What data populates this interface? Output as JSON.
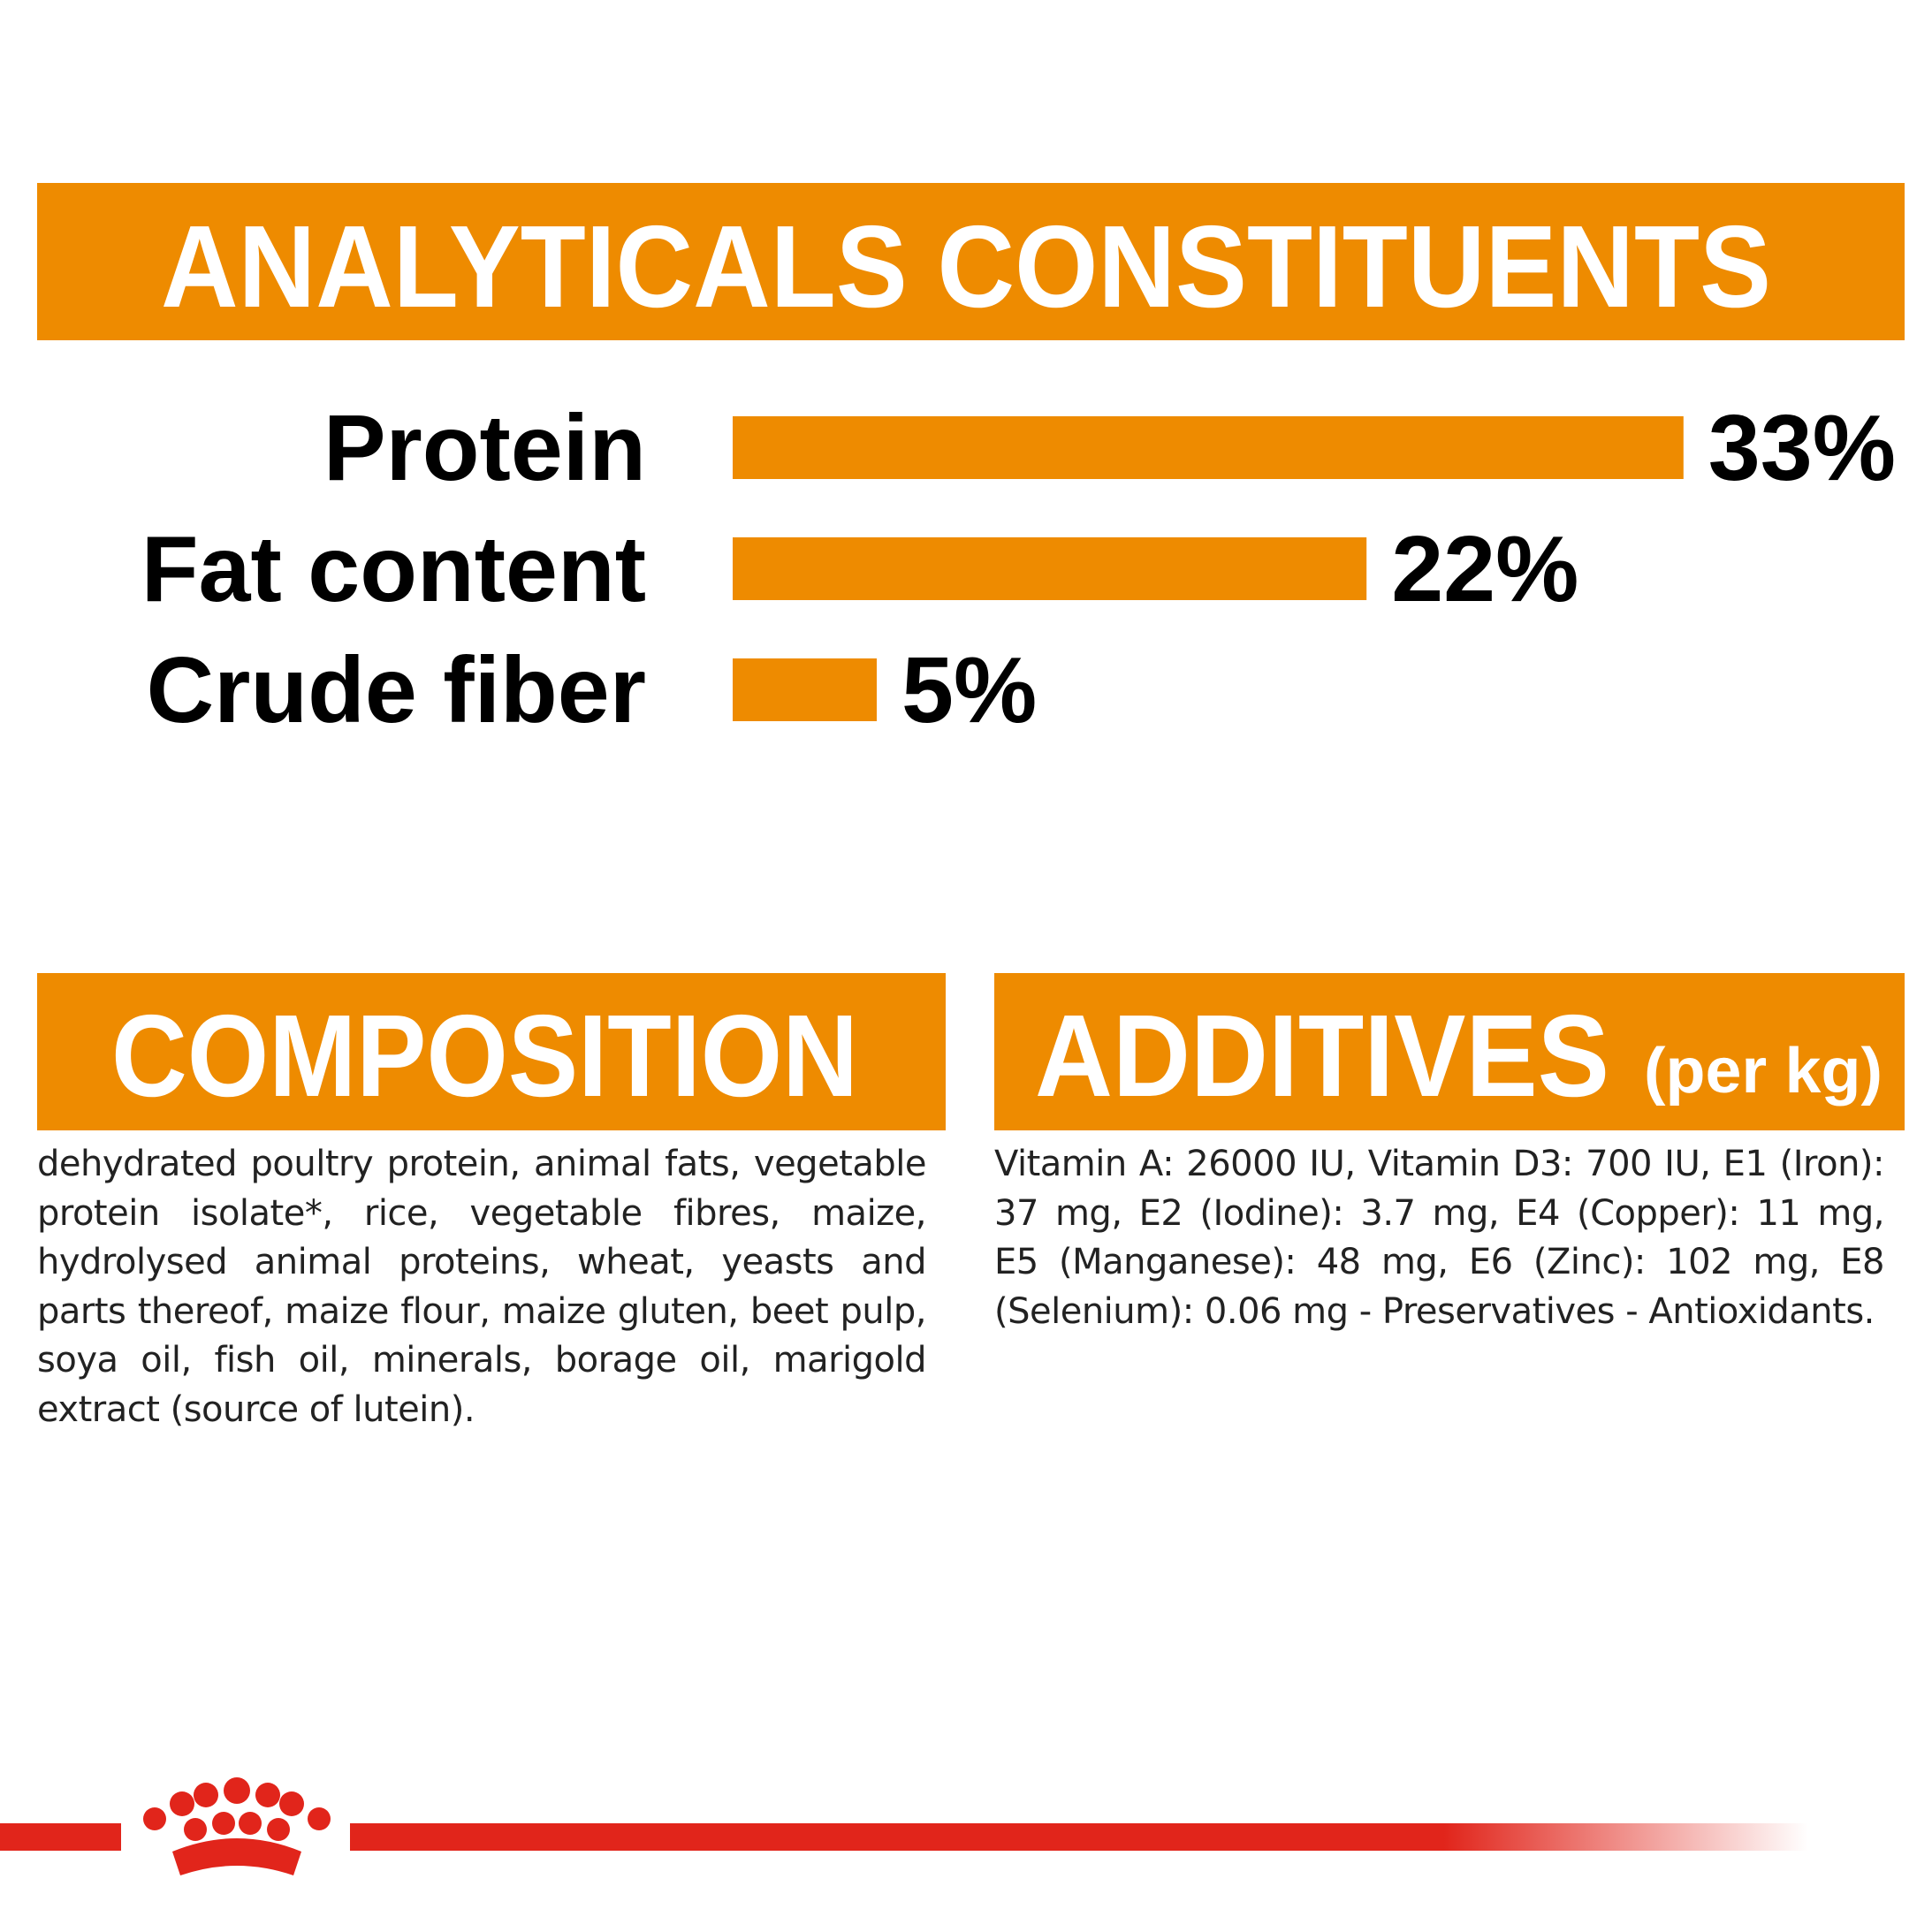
{
  "chart_data": {
    "type": "bar",
    "orientation": "horizontal",
    "title": "ANALYTICALS CONSTITUENTS",
    "categories": [
      "Protein",
      "Fat content",
      "Crude fiber"
    ],
    "values": [
      33,
      22,
      5
    ],
    "value_labels": [
      "33%",
      "22%",
      "5%"
    ],
    "color": "#ee8b00"
  },
  "composition": {
    "title": "COMPOSITION",
    "text": "dehydrated poultry protein, animal fats, vegetable protein isolate*, rice, vegetable fibres, maize, hydrolysed animal proteins, wheat, yeasts and parts thereof, maize flour, maize gluten, beet pulp, soya oil, fish oil, minerals, borage oil, marigold extract (source of lutein)."
  },
  "additives": {
    "title": "ADDITIVES",
    "subtitle": "(per kg)",
    "text": "Vitamin A: 26000 IU, Vitamin D3: 700 IU, E1 (Iron): 37 mg, E2 (Iodine): 3.7 mg, E4 (Copper): 11 mg, E5 (Manganese): 48 mg, E6 (Zinc): 102 mg, E8 (Selenium): 0.06 mg - Preservatives - Antioxidants."
  }
}
